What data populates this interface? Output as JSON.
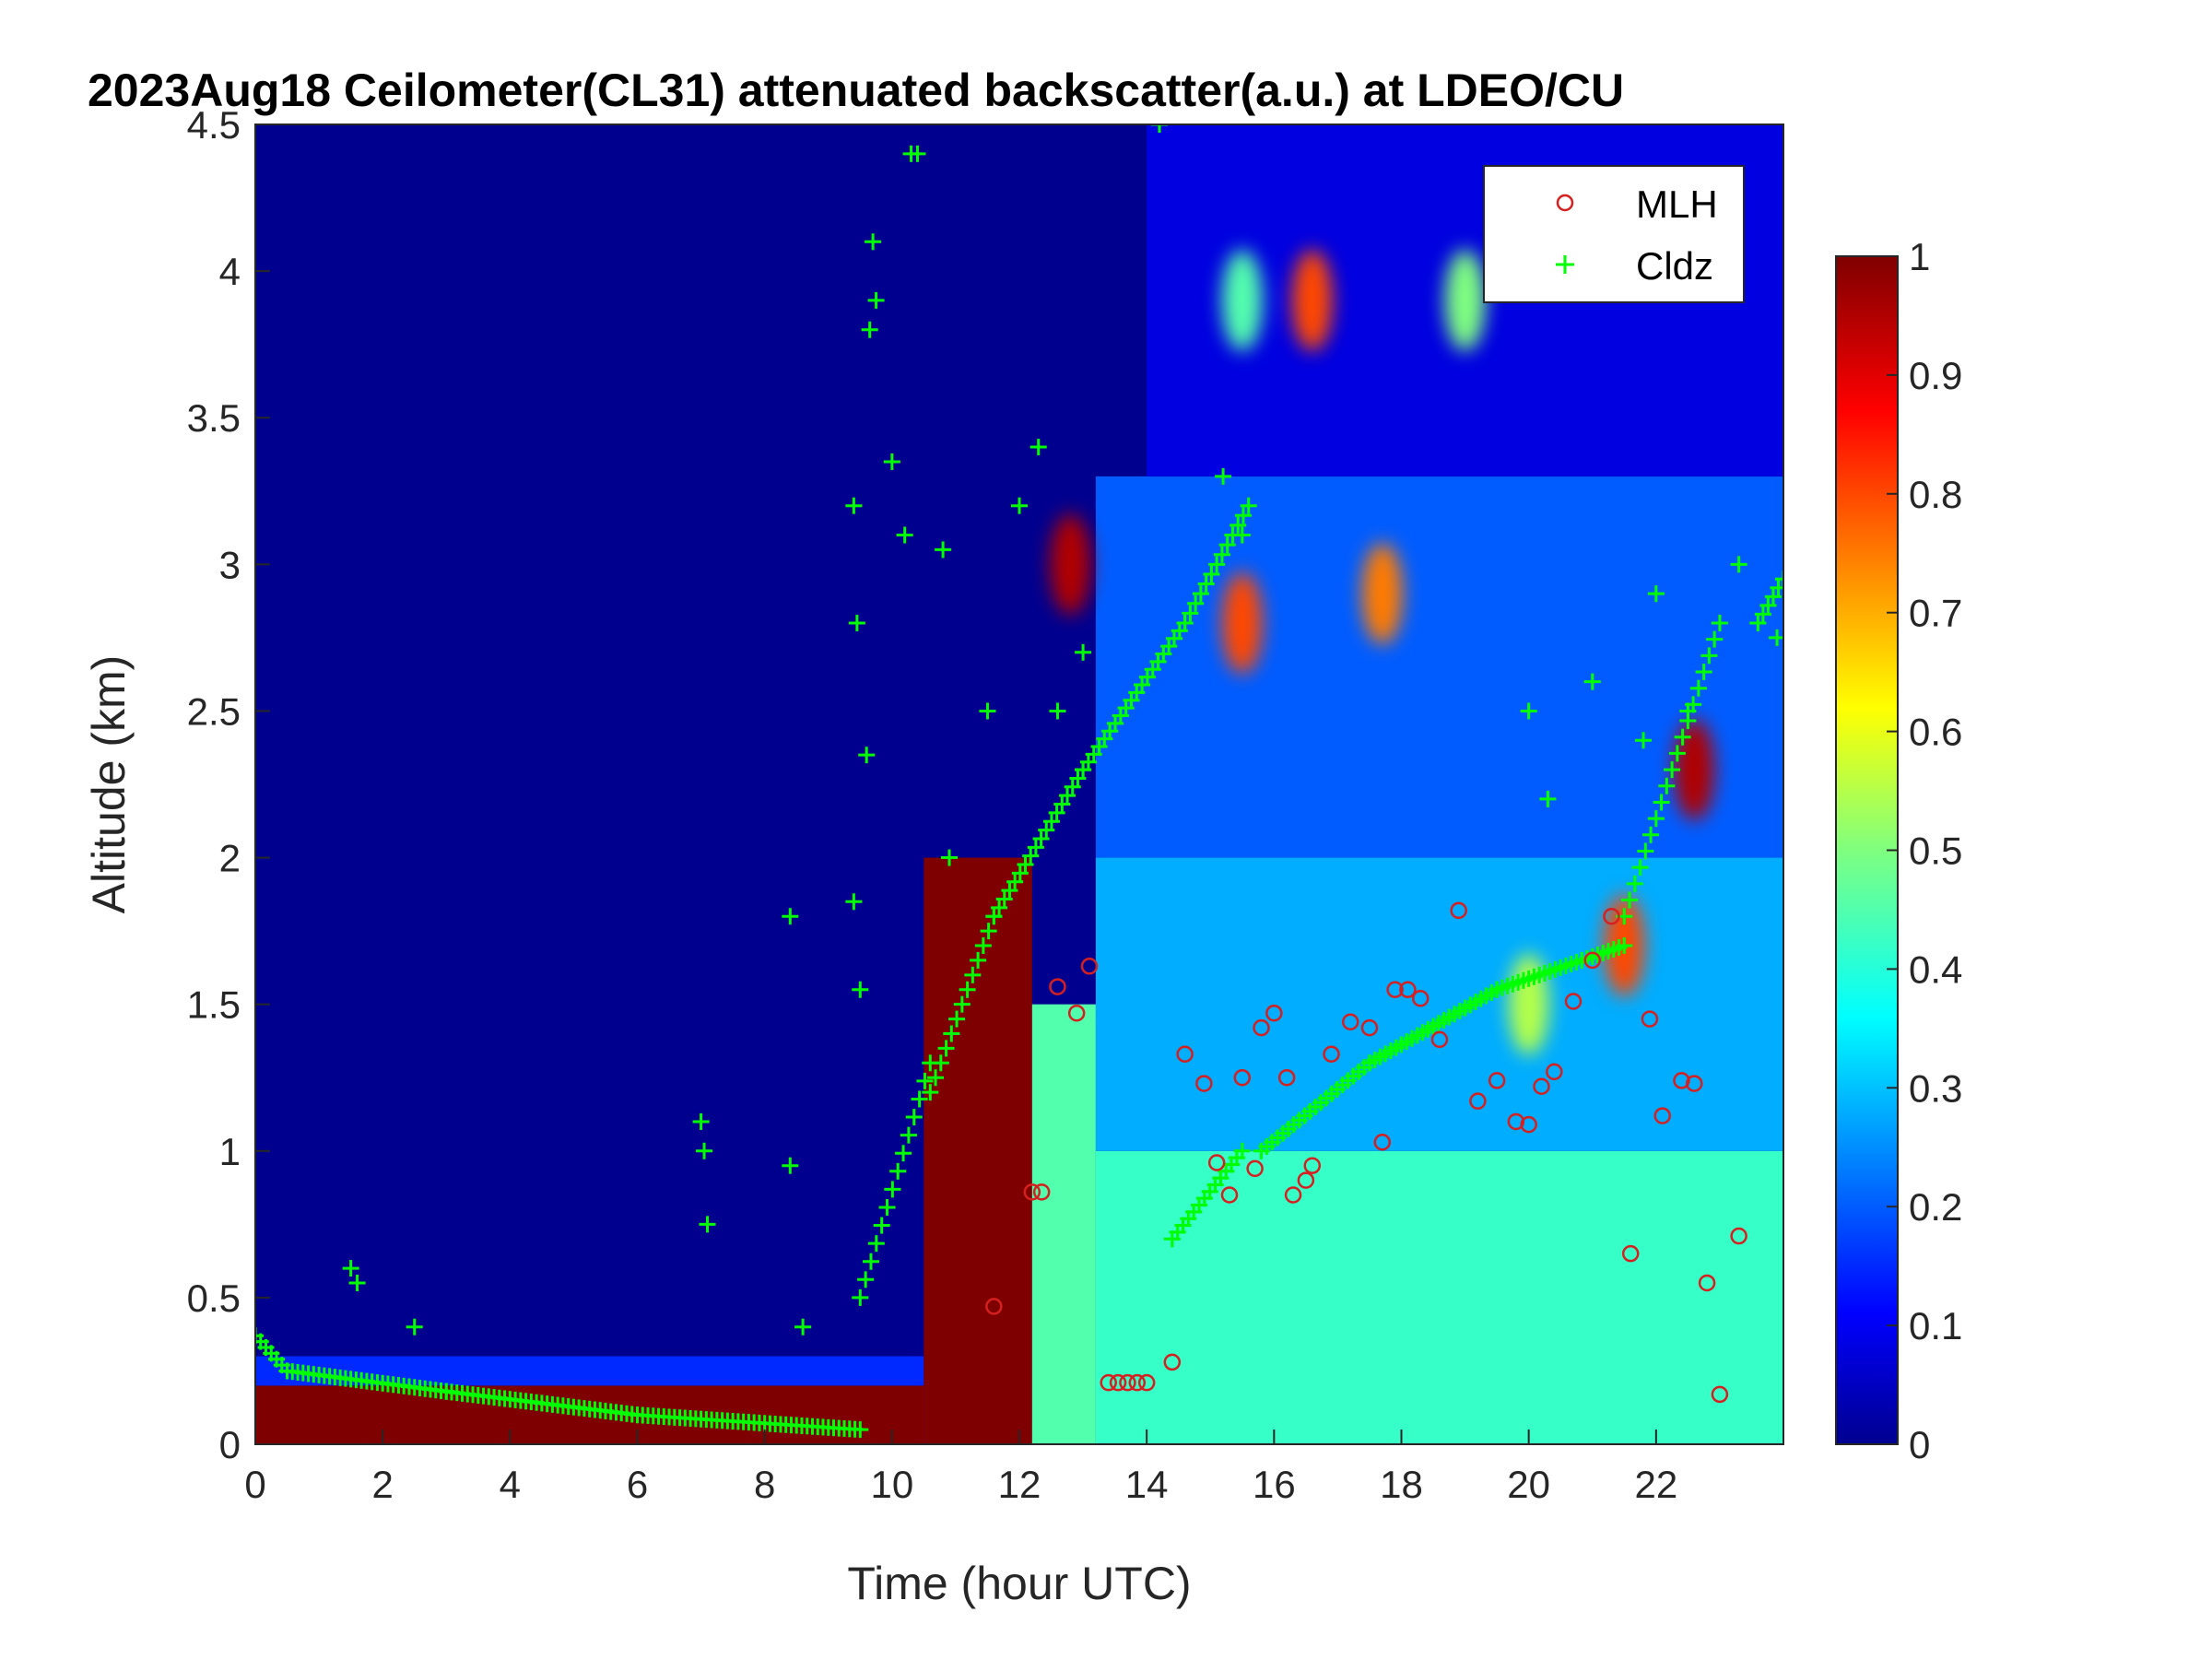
{
  "chart_data": {
    "type": "heatmap",
    "title": "2023Aug18 Ceilometer(CL31) attenuated backscatter(a.u.) at LDEO/CU",
    "xlabel": "Time (hour UTC)",
    "ylabel": "Altitude (km)",
    "xlim": [
      0,
      24
    ],
    "ylim": [
      0,
      4.5
    ],
    "xticks": [
      0,
      2,
      4,
      6,
      8,
      10,
      12,
      14,
      16,
      18,
      20,
      22
    ],
    "yticks": [
      0,
      0.5,
      1,
      1.5,
      2,
      2.5,
      3,
      3.5,
      4,
      4.5
    ],
    "yticklabels": [
      "0",
      "0.5",
      "1",
      "1.5",
      "2",
      "2.5",
      "3",
      "3.5",
      "4",
      "4.5"
    ],
    "colorbar": {
      "range": [
        0,
        1
      ],
      "ticks": [
        0,
        0.1,
        0.2,
        0.3,
        0.4,
        0.5,
        0.6,
        0.7,
        0.8,
        0.9,
        1
      ],
      "ticklabels": [
        "0",
        "0.1",
        "0.2",
        "0.3",
        "0.4",
        "0.5",
        "0.6",
        "0.7",
        "0.8",
        "0.9",
        "1"
      ],
      "colormap": "jet"
    },
    "legend": {
      "placement": "top-right",
      "entries": [
        {
          "label": "MLH",
          "marker": "circle",
          "color": "#d62020"
        },
        {
          "label": "Cldz",
          "marker": "plus",
          "color": "#00ff00"
        }
      ]
    },
    "background_field": {
      "description_levels": "backscatter level by region",
      "upper_clear_level": 0.0,
      "regions": [
        {
          "x": [
            0,
            10.5
          ],
          "y": [
            0,
            0.2
          ],
          "level": 1.0
        },
        {
          "x": [
            0,
            10.5
          ],
          "y": [
            0.2,
            0.3
          ],
          "level": 0.15
        },
        {
          "x": [
            10.5,
            12.2
          ],
          "y": [
            0,
            2.0
          ],
          "level": 1.0
        },
        {
          "x": [
            12.2,
            13.2
          ],
          "y": [
            0,
            1.5
          ],
          "level": 0.45
        },
        {
          "x": [
            13.2,
            24
          ],
          "y": [
            0,
            1.0
          ],
          "level": 0.42
        },
        {
          "x": [
            13.2,
            24
          ],
          "y": [
            1.0,
            2.0
          ],
          "level": 0.28
        },
        {
          "x": [
            13.2,
            24
          ],
          "y": [
            2.0,
            3.3
          ],
          "level": 0.2
        },
        {
          "x": [
            14,
            24
          ],
          "y": [
            3.3,
            4.5
          ],
          "level": 0.08
        }
      ],
      "cloud_patches": [
        {
          "x": 16.6,
          "y": 3.9,
          "level": 0.8
        },
        {
          "x": 15.5,
          "y": 3.9,
          "level": 0.45
        },
        {
          "x": 17.7,
          "y": 2.9,
          "level": 0.75
        },
        {
          "x": 19.0,
          "y": 3.9,
          "level": 0.5
        },
        {
          "x": 21.5,
          "y": 1.7,
          "level": 0.8
        },
        {
          "x": 22.6,
          "y": 2.3,
          "level": 0.95
        },
        {
          "x": 12.8,
          "y": 3.0,
          "level": 0.95
        },
        {
          "x": 15.5,
          "y": 2.8,
          "level": 0.8
        },
        {
          "x": 20.0,
          "y": 1.5,
          "level": 0.55
        }
      ]
    },
    "series": [
      {
        "name": "MLH",
        "marker": "circle",
        "x": [
          11.6,
          12.2,
          12.35,
          12.6,
          12.9,
          13.1,
          13.4,
          13.55,
          13.7,
          13.85,
          14.0,
          14.4,
          14.6,
          14.9,
          15.1,
          15.3,
          15.5,
          15.7,
          15.8,
          16.0,
          16.2,
          16.3,
          16.5,
          16.6,
          16.9,
          17.2,
          17.5,
          17.7,
          17.9,
          18.1,
          18.3,
          18.6,
          18.9,
          19.2,
          19.5,
          19.8,
          20.0,
          20.2,
          20.4,
          20.7,
          21.0,
          21.3,
          21.6,
          21.9,
          22.1,
          22.4,
          22.6,
          22.8,
          23.0,
          23.3
        ],
        "y": [
          0.47,
          0.86,
          0.86,
          1.56,
          1.47,
          1.63,
          0.21,
          0.21,
          0.21,
          0.21,
          0.21,
          0.28,
          1.33,
          1.23,
          0.96,
          0.85,
          1.25,
          0.94,
          1.42,
          1.47,
          1.25,
          0.85,
          0.9,
          0.95,
          1.33,
          1.44,
          1.42,
          1.03,
          1.55,
          1.55,
          1.52,
          1.38,
          1.82,
          1.17,
          1.24,
          1.1,
          1.09,
          1.22,
          1.27,
          1.51,
          1.65,
          1.8,
          0.65,
          1.45,
          1.12,
          1.24,
          1.23,
          0.55,
          0.17,
          0.71
        ]
      },
      {
        "name": "Cldz",
        "marker": "plus",
        "segments": [
          {
            "x0": 0.0,
            "x1": 0.5,
            "y0": 0.37,
            "y1": 0.25
          },
          {
            "x0": 0.5,
            "x1": 3.0,
            "y0": 0.25,
            "y1": 0.18
          },
          {
            "x0": 3.0,
            "x1": 6.0,
            "y0": 0.18,
            "y1": 0.1
          },
          {
            "x0": 6.0,
            "x1": 9.5,
            "y0": 0.1,
            "y1": 0.05
          },
          {
            "x0": 9.5,
            "x1": 10.6,
            "y0": 0.5,
            "y1": 1.3
          },
          {
            "x0": 10.6,
            "x1": 11.6,
            "y0": 1.2,
            "y1": 1.8
          },
          {
            "x0": 11.6,
            "x1": 13.0,
            "y0": 1.8,
            "y1": 2.3
          },
          {
            "x0": 13.0,
            "x1": 14.6,
            "y0": 2.3,
            "y1": 2.8
          },
          {
            "x0": 14.6,
            "x1": 15.6,
            "y0": 2.8,
            "y1": 3.2
          },
          {
            "x0": 14.4,
            "x1": 15.5,
            "y0": 0.7,
            "y1": 1.0
          },
          {
            "x0": 15.8,
            "x1": 17.5,
            "y0": 1.0,
            "y1": 1.3
          },
          {
            "x0": 17.5,
            "x1": 19.5,
            "y0": 1.3,
            "y1": 1.55
          },
          {
            "x0": 19.5,
            "x1": 21.5,
            "y0": 1.55,
            "y1": 1.7
          },
          {
            "x0": 21.5,
            "x1": 23.0,
            "y0": 1.8,
            "y1": 2.8
          },
          {
            "x0": 23.6,
            "x1": 24.0,
            "y0": 2.8,
            "y1": 2.95
          }
        ],
        "points": [
          {
            "x": 1.5,
            "y": 0.6
          },
          {
            "x": 1.6,
            "y": 0.55
          },
          {
            "x": 2.5,
            "y": 0.4
          },
          {
            "x": 7.0,
            "y": 1.1
          },
          {
            "x": 7.05,
            "y": 1.0
          },
          {
            "x": 7.1,
            "y": 0.75
          },
          {
            "x": 8.4,
            "y": 0.95
          },
          {
            "x": 8.4,
            "y": 1.8
          },
          {
            "x": 8.6,
            "y": 0.4
          },
          {
            "x": 9.4,
            "y": 3.2
          },
          {
            "x": 9.4,
            "y": 1.85
          },
          {
            "x": 9.45,
            "y": 2.8
          },
          {
            "x": 9.5,
            "y": 1.55
          },
          {
            "x": 9.6,
            "y": 2.35
          },
          {
            "x": 9.65,
            "y": 3.8
          },
          {
            "x": 9.7,
            "y": 4.1
          },
          {
            "x": 9.75,
            "y": 3.9
          },
          {
            "x": 10.2,
            "y": 3.1
          },
          {
            "x": 10.3,
            "y": 4.4
          },
          {
            "x": 10.4,
            "y": 4.4
          },
          {
            "x": 10.0,
            "y": 3.35
          },
          {
            "x": 10.8,
            "y": 3.05
          },
          {
            "x": 10.9,
            "y": 2.0
          },
          {
            "x": 11.5,
            "y": 2.5
          },
          {
            "x": 12.0,
            "y": 3.2
          },
          {
            "x": 12.3,
            "y": 3.4
          },
          {
            "x": 12.6,
            "y": 2.5
          },
          {
            "x": 13.0,
            "y": 2.7
          },
          {
            "x": 14.2,
            "y": 4.5
          },
          {
            "x": 15.2,
            "y": 3.3
          },
          {
            "x": 15.5,
            "y": 3.1
          },
          {
            "x": 20.0,
            "y": 2.5
          },
          {
            "x": 20.3,
            "y": 2.2
          },
          {
            "x": 21.0,
            "y": 2.6
          },
          {
            "x": 21.8,
            "y": 2.4
          },
          {
            "x": 22.0,
            "y": 2.9
          },
          {
            "x": 22.5,
            "y": 2.5
          },
          {
            "x": 23.3,
            "y": 3.0
          },
          {
            "x": 23.9,
            "y": 2.75
          }
        ]
      }
    ]
  }
}
